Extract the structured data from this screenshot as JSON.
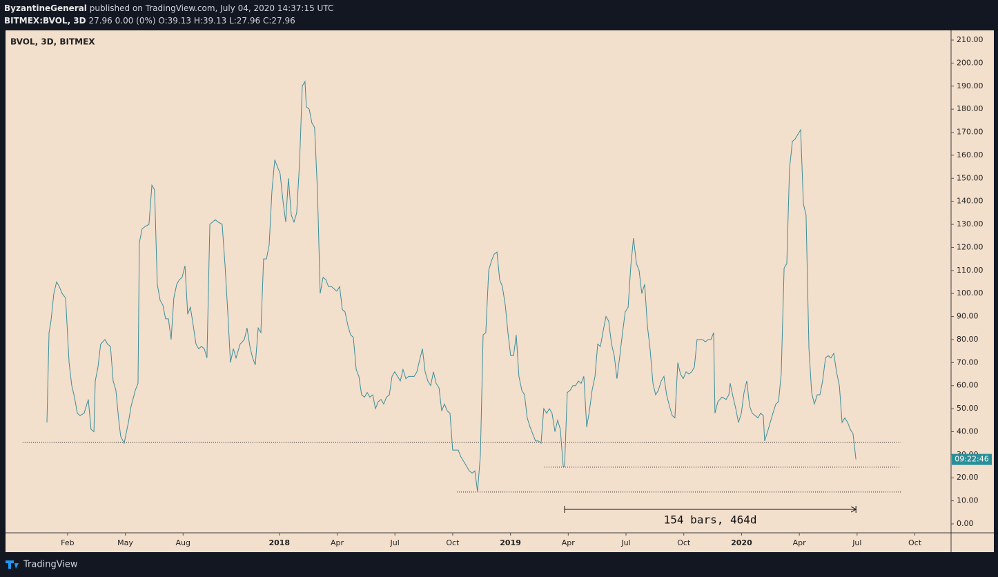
{
  "header": {
    "author": "ByzantineGeneral",
    "published": "published on TradingView.com, July 04, 2020 14:37:15 UTC",
    "symbol": "BITMEX:BVOL, 3D",
    "quote": "27.96 0.00 (0%) O:39.13 H:39.13 L:27.96 C:27.96"
  },
  "footer": {
    "brand": "TradingView"
  },
  "chart_data": {
    "type": "line",
    "title": "BVOL, 3D, BITMEX",
    "color": "#3b8e9a",
    "grid": false,
    "countdown": "09:22:46",
    "xlim": [
      -2.22,
      46.88
    ],
    "ylim": [
      -3.9,
      214.2
    ],
    "xticks": [
      {
        "value": 1,
        "label": "Feb"
      },
      {
        "value": 4,
        "label": "May"
      },
      {
        "value": 7,
        "label": "Aug"
      },
      {
        "value": 12,
        "label": "2018"
      },
      {
        "value": 15,
        "label": "Apr"
      },
      {
        "value": 18,
        "label": "Jul"
      },
      {
        "value": 21,
        "label": "Oct"
      },
      {
        "value": 24,
        "label": "2019"
      },
      {
        "value": 27,
        "label": "Apr"
      },
      {
        "value": 30,
        "label": "Jul"
      },
      {
        "value": 33,
        "label": "Oct"
      },
      {
        "value": 36,
        "label": "2020"
      },
      {
        "value": 39,
        "label": "Apr"
      },
      {
        "value": 42,
        "label": "Jul"
      },
      {
        "value": 45,
        "label": "Oct"
      }
    ],
    "yticks": [
      {
        "value": 0,
        "label": "0.00"
      },
      {
        "value": 10,
        "label": "10.00"
      },
      {
        "value": 20,
        "label": "20.00"
      },
      {
        "value": 30,
        "label": "30.00"
      },
      {
        "value": 40,
        "label": "40.00"
      },
      {
        "value": 50,
        "label": "50.00"
      },
      {
        "value": 60,
        "label": "60.00"
      },
      {
        "value": 70,
        "label": "70.00"
      },
      {
        "value": 80,
        "label": "80.00"
      },
      {
        "value": 90,
        "label": "90.00"
      },
      {
        "value": 100,
        "label": "100.00"
      },
      {
        "value": 110,
        "label": "110.00"
      },
      {
        "value": 120,
        "label": "120.00"
      },
      {
        "value": 130,
        "label": "130.00"
      },
      {
        "value": 140,
        "label": "140.00"
      },
      {
        "value": 150,
        "label": "150.00"
      },
      {
        "value": 160,
        "label": "160.00"
      },
      {
        "value": 170,
        "label": "170.00"
      },
      {
        "value": 180,
        "label": "180.00"
      },
      {
        "value": 190,
        "label": "190.00"
      },
      {
        "value": 200,
        "label": "200.00"
      },
      {
        "value": 210,
        "label": "210.00"
      }
    ],
    "hlines": [
      {
        "value": 35.3,
        "x": [
          -1.33,
          44.27
        ]
      },
      {
        "value": 24.6,
        "x": [
          25.77,
          44.27
        ]
      },
      {
        "value": 13.8,
        "x": [
          21.22,
          44.27
        ]
      }
    ],
    "measure": {
      "label": "154 bars, 464d",
      "x": [
        26.81,
        41.94
      ],
      "y": 6.3
    },
    "x": [
      -0.07,
      0.04,
      0.14,
      0.29,
      0.43,
      0.57,
      0.72,
      0.9,
      1.08,
      1.22,
      1.36,
      1.51,
      1.65,
      1.86,
      2.08,
      2.22,
      2.37,
      2.44,
      2.58,
      2.72,
      2.94,
      3.08,
      3.23,
      3.37,
      3.51,
      3.66,
      3.76,
      3.94,
      4.16,
      4.3,
      4.52,
      4.66,
      4.73,
      4.87,
      5.02,
      5.23,
      5.38,
      5.52,
      5.66,
      5.81,
      5.95,
      6.09,
      6.24,
      6.38,
      6.52,
      6.67,
      6.81,
      6.95,
      7.1,
      7.24,
      7.38,
      7.53,
      7.67,
      7.81,
      7.96,
      8.1,
      8.24,
      8.39,
      8.53,
      8.67,
      8.82,
      9.03,
      9.18,
      9.32,
      9.46,
      9.61,
      9.75,
      9.96,
      10.18,
      10.32,
      10.47,
      10.61,
      10.75,
      10.9,
      11.04,
      11.18,
      11.33,
      11.47,
      11.61,
      11.76,
      11.9,
      12.04,
      12.19,
      12.33,
      12.47,
      12.62,
      12.76,
      12.9,
      13.05,
      13.19,
      13.26,
      13.33,
      13.4,
      13.55,
      13.69,
      13.83,
      13.98,
      14.12,
      14.27,
      14.41,
      14.55,
      14.7,
      14.84,
      14.98,
      15.13,
      15.27,
      15.41,
      15.56,
      15.7,
      15.84,
      15.99,
      16.13,
      16.27,
      16.42,
      16.56,
      16.7,
      16.85,
      16.99,
      17.13,
      17.28,
      17.42,
      17.56,
      17.71,
      17.85,
      17.99,
      18.14,
      18.28,
      18.42,
      18.57,
      18.71,
      18.85,
      19.0,
      19.14,
      19.28,
      19.43,
      19.57,
      19.71,
      19.86,
      20.0,
      20.14,
      20.29,
      20.43,
      20.57,
      20.72,
      20.86,
      21.0,
      21.15,
      21.29,
      21.43,
      21.58,
      21.72,
      21.86,
      22.01,
      22.15,
      22.29,
      22.44,
      22.58,
      22.72,
      22.87,
      23.01,
      23.15,
      23.3,
      23.44,
      23.58,
      23.73,
      23.87,
      24.01,
      24.16,
      24.3,
      24.44,
      24.59,
      24.73,
      24.87,
      25.02,
      25.16,
      25.3,
      25.45,
      25.59,
      25.73,
      25.88,
      26.02,
      26.16,
      26.31,
      26.45,
      26.59,
      26.74,
      26.81,
      26.95,
      27.1,
      27.24,
      27.38,
      27.53,
      27.67,
      27.81,
      27.96,
      28.1,
      28.24,
      28.39,
      28.53,
      28.67,
      28.82,
      28.96,
      29.1,
      29.25,
      29.39,
      29.53,
      29.68,
      29.82,
      29.96,
      30.11,
      30.25,
      30.39,
      30.54,
      30.68,
      30.82,
      30.97,
      31.11,
      31.25,
      31.4,
      31.54,
      31.68,
      31.83,
      31.97,
      32.11,
      32.26,
      32.4,
      32.54,
      32.69,
      32.83,
      32.97,
      33.12,
      33.26,
      33.41,
      33.55,
      33.69,
      33.84,
      33.98,
      34.12,
      34.27,
      34.41,
      34.55,
      34.62,
      34.77,
      34.98,
      35.2,
      35.34,
      35.41,
      35.56,
      35.7,
      35.84,
      35.99,
      36.13,
      36.27,
      36.42,
      36.56,
      36.7,
      36.85,
      36.99,
      37.13,
      37.2,
      37.35,
      37.49,
      37.63,
      37.78,
      37.92,
      38.06,
      38.21,
      38.35,
      38.49,
      38.64,
      38.78,
      38.92,
      39.07,
      39.21,
      39.35,
      39.5,
      39.64,
      39.78,
      39.93,
      40.07,
      40.21,
      40.36,
      40.5,
      40.64,
      40.79,
      40.93,
      41.08,
      41.22,
      41.36,
      41.51,
      41.65,
      41.79,
      41.94
    ],
    "values": [
      44,
      83,
      88,
      100,
      105,
      103,
      100,
      98,
      70,
      60,
      55,
      48,
      47,
      48,
      54,
      41,
      40,
      62,
      68,
      78,
      80,
      78,
      77,
      62,
      58,
      45,
      38,
      35,
      44,
      51,
      58,
      61,
      122,
      128,
      129,
      130,
      147,
      145,
      104,
      97,
      95,
      89,
      89,
      80,
      98,
      104,
      106,
      107,
      112,
      91,
      94,
      86,
      78,
      76,
      77,
      76,
      72,
      130,
      131,
      132,
      131,
      130,
      112,
      92,
      70,
      76,
      72,
      78,
      80,
      85,
      77,
      72,
      69,
      85,
      83,
      115,
      115,
      121,
      144,
      158,
      155,
      152,
      140,
      131,
      150,
      134,
      131,
      135,
      157,
      190,
      191,
      192,
      181,
      180,
      174,
      172,
      144,
      100,
      107,
      106,
      103,
      103,
      102,
      101,
      103,
      93,
      92,
      86,
      82,
      81,
      67,
      64,
      56,
      55,
      57,
      55,
      56,
      50,
      53,
      54,
      52,
      55,
      56,
      64,
      66,
      64,
      62,
      67,
      63,
      64,
      64,
      64,
      66,
      71,
      76,
      66,
      62,
      60,
      66,
      61,
      59,
      49,
      52,
      49,
      48,
      32,
      32,
      32,
      29,
      27,
      25,
      23,
      22,
      23,
      14,
      30,
      82,
      83,
      110,
      114,
      117,
      118,
      106,
      103,
      95,
      83,
      73,
      73,
      82,
      64,
      58,
      56,
      46,
      42,
      39,
      36,
      36,
      35,
      50,
      48,
      50,
      48,
      40,
      45,
      41,
      25,
      25,
      57,
      58,
      60,
      60,
      62,
      61,
      64,
      42,
      49,
      58,
      64,
      78,
      77,
      84,
      90,
      88,
      78,
      73,
      63,
      73,
      83,
      92,
      94,
      112,
      124,
      113,
      110,
      100,
      104,
      86,
      76,
      61,
      56,
      58,
      62,
      64,
      56,
      51,
      47,
      46,
      70,
      65,
      63,
      66,
      65,
      66,
      68,
      80,
      80,
      80,
      79,
      80,
      80,
      83,
      48,
      53,
      55,
      54,
      56,
      61,
      55,
      50,
      44,
      48,
      57,
      62,
      51,
      48,
      47,
      46,
      48,
      47,
      36,
      40,
      44,
      48,
      52,
      53,
      65,
      111,
      113,
      154,
      166,
      167,
      169,
      171,
      139,
      134,
      76,
      57,
      52,
      56,
      56,
      62,
      72,
      73,
      72,
      74,
      66,
      60,
      44,
      46,
      44,
      41,
      39,
      27.96
    ]
  }
}
